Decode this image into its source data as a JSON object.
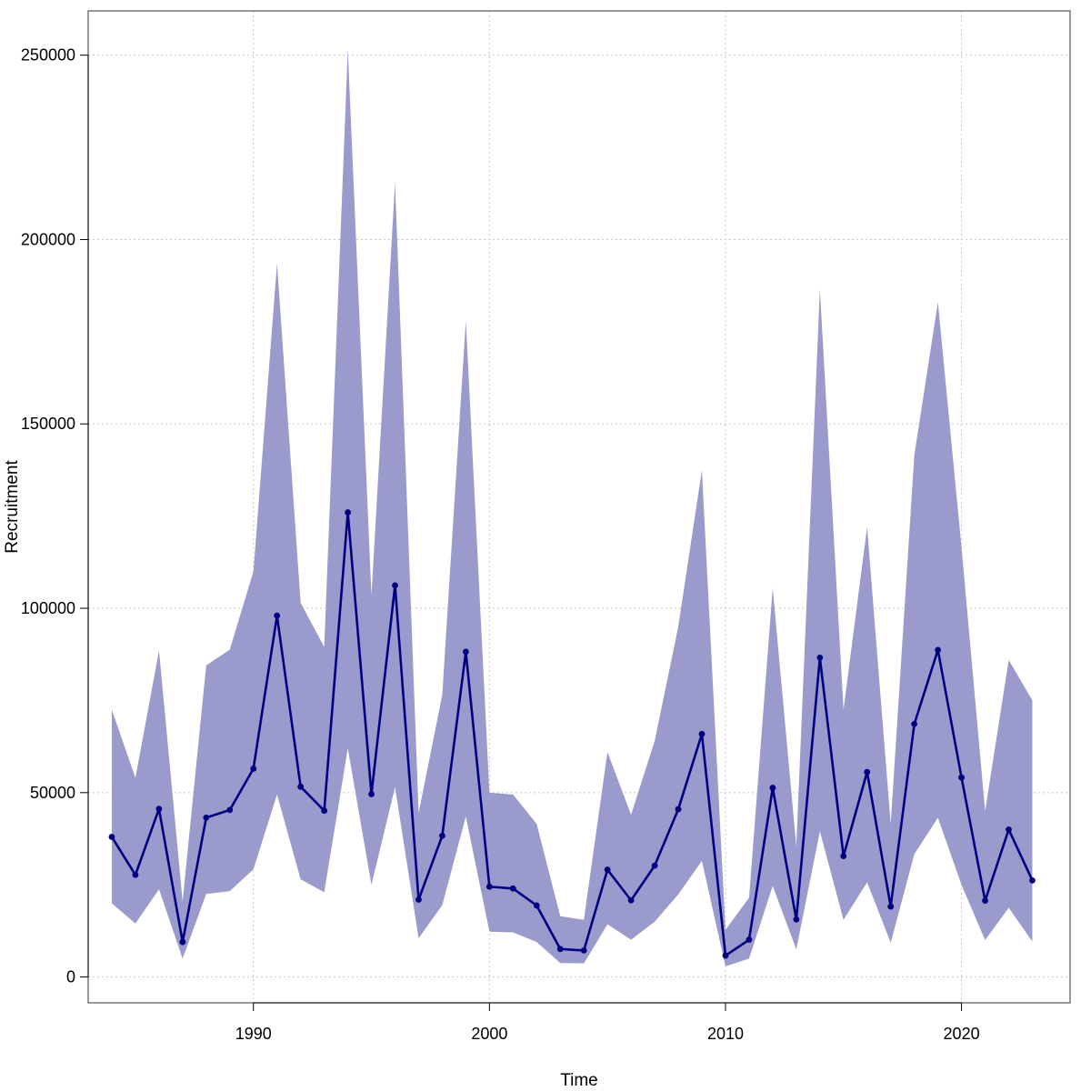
{
  "chart_data": {
    "type": "line",
    "title": "",
    "xlabel": "Time",
    "ylabel": "Recruitment",
    "xlim": [
      1983.0,
      2024.6
    ],
    "ylim": [
      -7000,
      262000
    ],
    "xticks": [
      1990,
      2000,
      2010,
      2020
    ],
    "yticks": [
      0,
      50000,
      100000,
      150000,
      200000,
      250000
    ],
    "grid": true,
    "colors": {
      "line": "#000080",
      "band": "#9a9acc",
      "grid": "#c8c8c8",
      "axis": "#555555"
    },
    "series": [
      {
        "name": "Recruitment",
        "x": [
          1984,
          1985,
          1986,
          1987,
          1988,
          1989,
          1990,
          1991,
          1992,
          1993,
          1994,
          1995,
          1996,
          1997,
          1998,
          1999,
          2000,
          2001,
          2002,
          2003,
          2004,
          2005,
          2006,
          2007,
          2008,
          2009,
          2010,
          2011,
          2012,
          2013,
          2014,
          2015,
          2016,
          2017,
          2018,
          2019,
          2020,
          2021,
          2022,
          2023
        ],
        "values": [
          38000,
          27700,
          45600,
          9500,
          43200,
          45300,
          56500,
          98000,
          51600,
          45100,
          126000,
          49600,
          106200,
          21000,
          38300,
          88200,
          24500,
          24000,
          19400,
          7600,
          7200,
          29100,
          20800,
          30200,
          45500,
          65900,
          5800,
          10100,
          51300,
          15600,
          86600,
          32800,
          55600,
          19100,
          68600,
          88700,
          54100,
          20700,
          40000,
          26200
        ],
        "lower": [
          20000,
          14500,
          23800,
          5000,
          22500,
          23300,
          29200,
          49500,
          26500,
          23000,
          62000,
          25000,
          51500,
          10500,
          19500,
          43500,
          12300,
          12100,
          9500,
          3800,
          3700,
          14300,
          10100,
          15000,
          22400,
          31500,
          2900,
          5000,
          24700,
          7500,
          39500,
          15500,
          25700,
          9300,
          33300,
          43200,
          25000,
          10000,
          18800,
          9600
        ],
        "upper": [
          72500,
          54000,
          88500,
          20500,
          84500,
          88800,
          110000,
          193500,
          101500,
          89500,
          251500,
          103500,
          215500,
          44500,
          76500,
          178000,
          50000,
          49500,
          41500,
          16500,
          15500,
          61000,
          44000,
          64000,
          95000,
          137500,
          12800,
          21500,
          105500,
          35500,
          186500,
          72500,
          122000,
          41500,
          141500,
          183000,
          116500,
          45000,
          86000,
          75000
        ]
      }
    ]
  }
}
